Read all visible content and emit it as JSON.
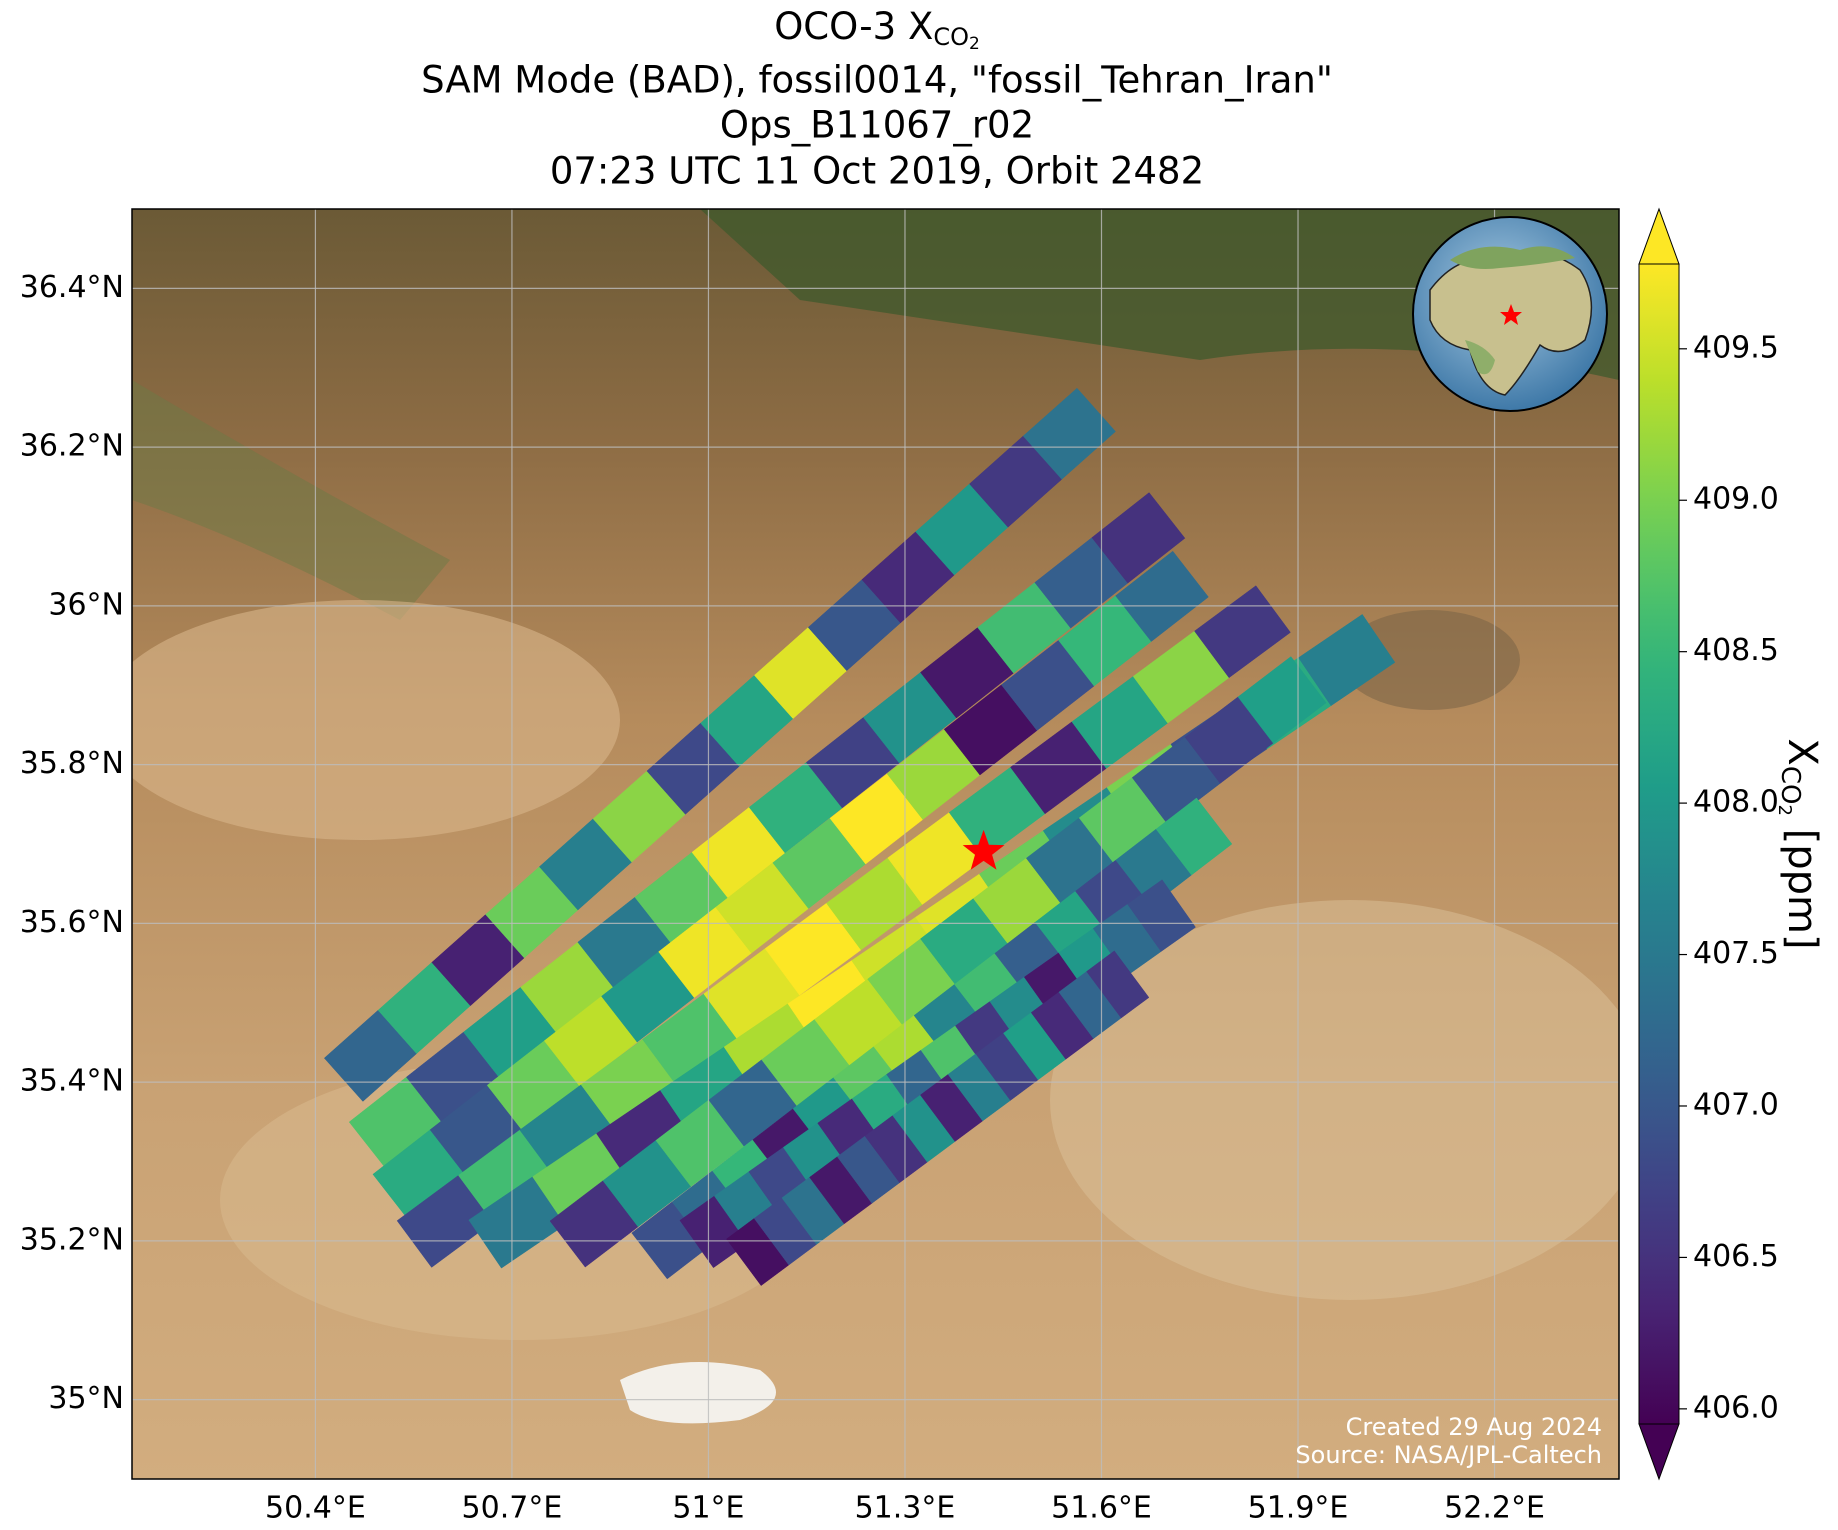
{
  "chart_data": {
    "type": "swath-map",
    "title_main": "OCO-3 X",
    "title_sub": "CO",
    "title_subsub": "2",
    "subtitles": [
      "SAM Mode (BAD), fossil0014, \"fossil_Tehran_Iran\"",
      "Ops_B11067_r02",
      "07:23 UTC 11 Oct 2019, Orbit 2482"
    ],
    "xlim": [
      50.12,
      52.39
    ],
    "ylim": [
      34.9,
      36.5
    ],
    "xticks": [
      {
        "value": 50.4,
        "label": "50.4°E"
      },
      {
        "value": 50.7,
        "label": "50.7°E"
      },
      {
        "value": 51,
        "label": "51°E"
      },
      {
        "value": 51.3,
        "label": "51.3°E"
      },
      {
        "value": 51.6,
        "label": "51.6°E"
      },
      {
        "value": 51.9,
        "label": "51.9°E"
      },
      {
        "value": 52.2,
        "label": "52.2°E"
      }
    ],
    "yticks": [
      {
        "value": 35,
        "label": "35°N"
      },
      {
        "value": 35.2,
        "label": "35.2°N"
      },
      {
        "value": 35.4,
        "label": "35.4°N"
      },
      {
        "value": 35.6,
        "label": "35.6°N"
      },
      {
        "value": 35.8,
        "label": "35.8°N"
      },
      {
        "value": 36,
        "label": "36°N"
      },
      {
        "value": 36.2,
        "label": "36.2°N"
      },
      {
        "value": 36.4,
        "label": "36.4°N"
      }
    ],
    "grid": true,
    "colormap": "viridis",
    "clim": [
      405.95,
      409.78
    ],
    "extend": "both",
    "cticks": [
      {
        "value": 406,
        "label": "406.0"
      },
      406.5,
      {
        "value": 407,
        "label": "407.0"
      },
      407.5,
      {
        "value": 408,
        "label": "408.0"
      },
      408.5,
      {
        "value": 409,
        "label": "409.0"
      },
      409.5
    ],
    "colorbar_label": {
      "symbol": "X",
      "sub": "CO",
      "subsub": "2",
      "unit": "[ppm]"
    },
    "target": [
      51.42,
      35.69
    ],
    "target_color": "#ff0000",
    "swaths": [
      {
        "start": [
          50.443,
          35.403
        ],
        "end": [
          51.592,
          36.247
        ],
        "values": [
          407.2,
          408.4,
          406.3,
          408.9,
          407.6,
          409.1,
          406.8,
          408.2,
          409.6,
          407.0,
          406.4,
          408.0,
          406.6,
          407.4
        ]
      },
      {
        "start": [
          50.479,
          35.321
        ],
        "end": [
          51.7,
          36.114
        ],
        "values": [
          408.7,
          406.9,
          408.1,
          409.2,
          407.5,
          408.8,
          409.7,
          408.4,
          406.7,
          407.9,
          406.2,
          408.6,
          407.1,
          406.5
        ]
      },
      {
        "start": [
          50.515,
          35.255
        ],
        "end": [
          51.736,
          36.04
        ],
        "values": [
          408.3,
          407.0,
          408.9,
          409.4,
          408.0,
          409.7,
          409.5,
          408.8,
          409.8,
          409.2,
          406.1,
          406.9,
          408.5,
          407.3
        ]
      },
      {
        "start": [
          50.551,
          35.196
        ],
        "end": [
          51.862,
          35.996
        ],
        "values": [
          406.8,
          408.6,
          407.7,
          409.0,
          408.7,
          409.6,
          409.8,
          409.3,
          409.7,
          408.4,
          406.3,
          408.2,
          409.1,
          406.6
        ]
      },
      {
        "start": [
          50.659,
          35.196
        ],
        "end": [
          52.023,
          35.959
        ],
        "values": [
          407.5,
          408.9,
          406.4,
          408.2,
          409.3,
          409.8,
          409.5,
          409.6,
          408.9,
          407.8,
          409.0,
          406.9,
          408.3,
          407.6
        ]
      },
      {
        "start": [
          50.785,
          35.196
        ],
        "end": [
          51.916,
          35.907
        ],
        "values": [
          406.5,
          407.9,
          408.7,
          407.2,
          408.9,
          409.4,
          409.0,
          408.3,
          409.2,
          407.4,
          408.8,
          407.0,
          406.7,
          408.1
        ]
      },
      {
        "start": [
          50.91,
          35.181
        ],
        "end": [
          51.772,
          35.729
        ],
        "values": [
          406.9,
          407.3,
          408.5,
          406.2,
          408.0,
          408.8,
          409.3,
          407.7,
          408.6,
          407.1,
          408.2,
          406.8,
          407.5,
          408.4
        ]
      },
      {
        "start": [
          50.982,
          35.196
        ],
        "end": [
          51.718,
          35.625
        ],
        "values": [
          406.3,
          407.6,
          406.8,
          407.9,
          406.4,
          408.3,
          407.2,
          408.7,
          406.6,
          407.8,
          406.2,
          408.0,
          407.3,
          406.9
        ]
      },
      {
        "start": [
          51.054,
          35.173
        ],
        "end": [
          51.646,
          35.536
        ],
        "values": [
          406.1,
          406.8,
          407.4,
          406.2,
          407.0,
          406.5,
          407.9,
          406.3,
          407.6,
          406.7,
          408.1,
          406.4,
          407.2,
          406.6
        ]
      }
    ],
    "credits": [
      "Created 29 Aug 2024",
      "Source: NASA/JPL-Caltech"
    ]
  }
}
